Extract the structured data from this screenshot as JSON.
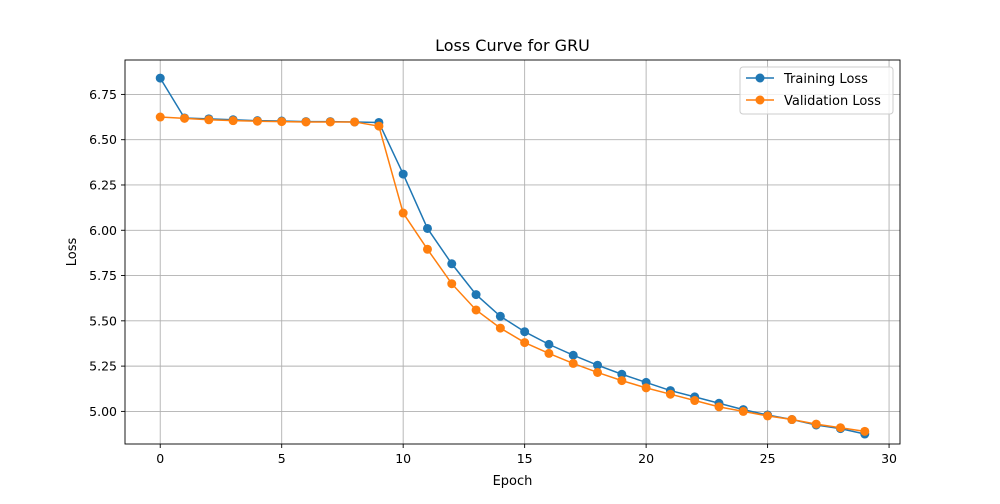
{
  "chart_data": {
    "type": "line",
    "title": "Loss Curve for GRU",
    "xlabel": "Epoch",
    "ylabel": "Loss",
    "x": [
      0,
      1,
      2,
      3,
      4,
      5,
      6,
      7,
      8,
      9,
      10,
      11,
      12,
      13,
      14,
      15,
      16,
      17,
      18,
      19,
      20,
      21,
      22,
      23,
      24,
      25,
      26,
      27,
      28,
      29
    ],
    "xlim": [
      -1.45,
      30.45
    ],
    "ylim": [
      4.82,
      6.94
    ],
    "xticks": [
      0,
      5,
      10,
      15,
      20,
      25,
      30
    ],
    "yticks": [
      5.0,
      5.25,
      5.5,
      5.75,
      6.0,
      6.25,
      6.5,
      6.75
    ],
    "xtick_labels": [
      "0",
      "5",
      "10",
      "15",
      "20",
      "25",
      "30"
    ],
    "ytick_labels": [
      "5.00",
      "5.25",
      "5.50",
      "5.75",
      "6.00",
      "6.25",
      "6.50",
      "6.75"
    ],
    "grid": true,
    "legend_position": "top-right",
    "marker": "circle",
    "series": [
      {
        "name": "Training Loss",
        "color": "#1f77b4",
        "values": [
          6.84,
          6.62,
          6.615,
          6.61,
          6.605,
          6.603,
          6.6,
          6.6,
          6.598,
          6.595,
          6.31,
          6.01,
          5.815,
          5.645,
          5.525,
          5.44,
          5.37,
          5.31,
          5.255,
          5.205,
          5.16,
          5.115,
          5.08,
          5.045,
          5.01,
          4.98,
          4.955,
          4.925,
          4.905,
          4.875
        ]
      },
      {
        "name": "Validation Loss",
        "color": "#ff7f0e",
        "values": [
          6.625,
          6.618,
          6.61,
          6.605,
          6.602,
          6.6,
          6.598,
          6.598,
          6.598,
          6.575,
          6.095,
          5.895,
          5.705,
          5.56,
          5.46,
          5.38,
          5.32,
          5.265,
          5.215,
          5.17,
          5.13,
          5.095,
          5.06,
          5.025,
          5.0,
          4.975,
          4.955,
          4.93,
          4.91,
          4.89
        ]
      }
    ]
  }
}
